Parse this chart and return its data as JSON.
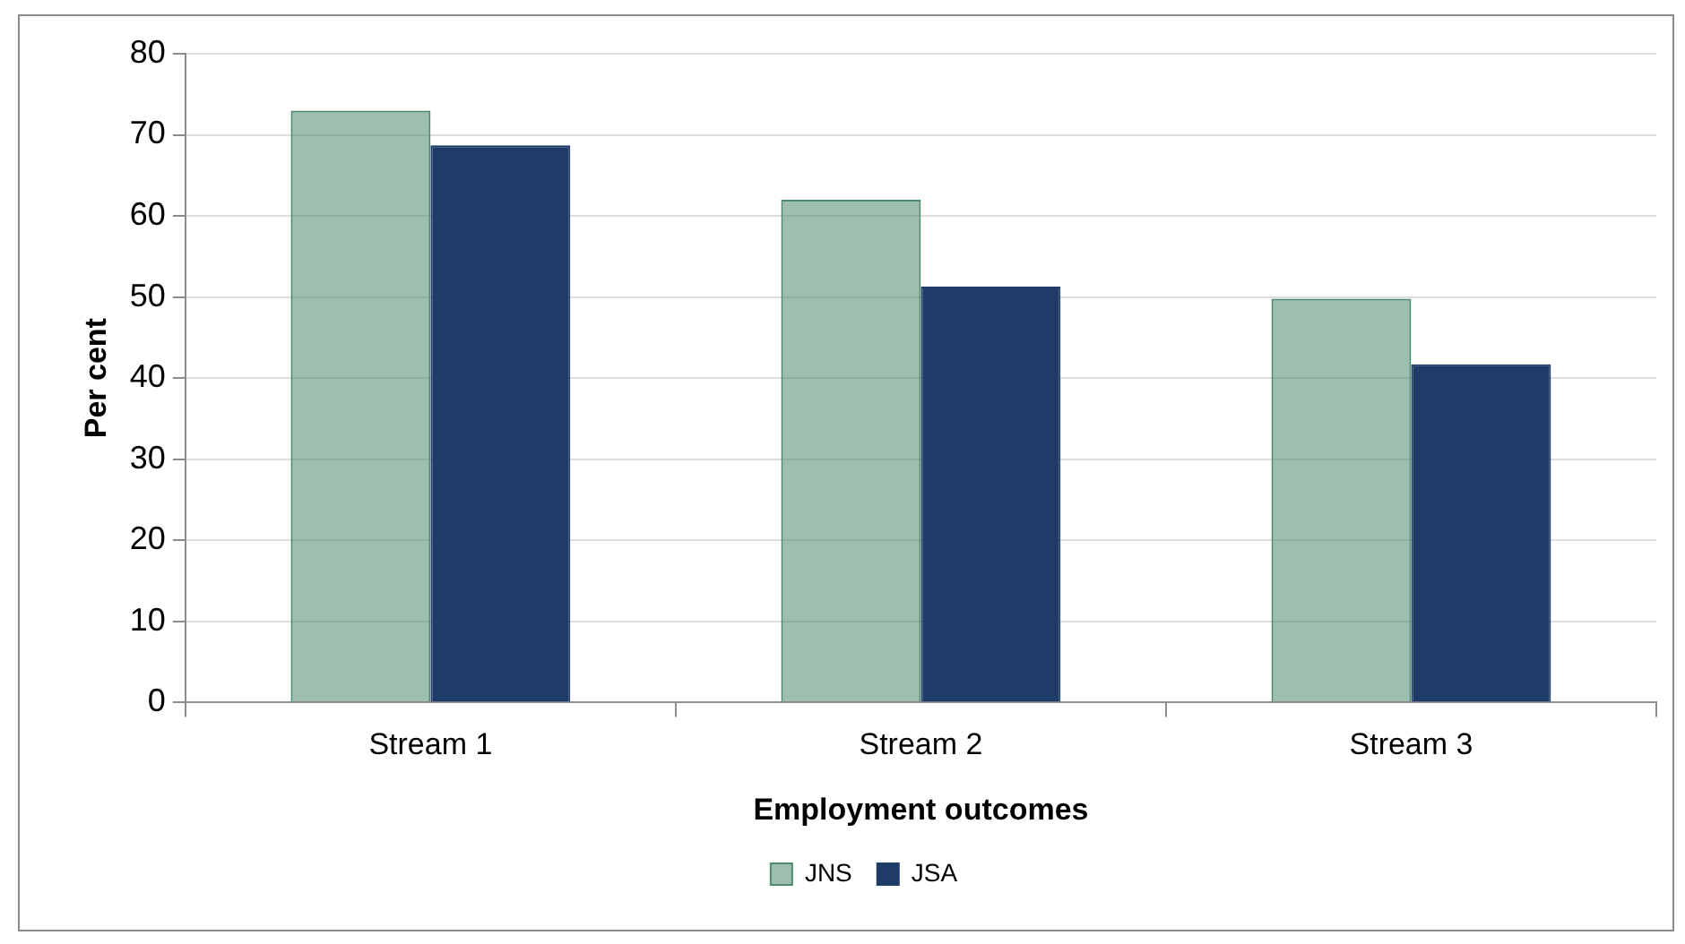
{
  "chart_data": {
    "type": "bar",
    "xlabel": "Employment outcomes",
    "ylabel": "Per cent",
    "categories": [
      "Stream 1",
      "Stream 2",
      "Stream 3"
    ],
    "series": [
      {
        "name": "JNS",
        "color": "#4e8a6e",
        "values": [
          73.0,
          62.0,
          49.8
        ]
      },
      {
        "name": "JSA",
        "color": "#1f3b68",
        "values": [
          68.7,
          51.3,
          41.7
        ]
      }
    ],
    "ylim": [
      0,
      80
    ],
    "yticks": [
      0,
      10,
      20,
      30,
      40,
      50,
      60,
      70,
      80
    ],
    "grid": "y",
    "legend": "bottom"
  }
}
